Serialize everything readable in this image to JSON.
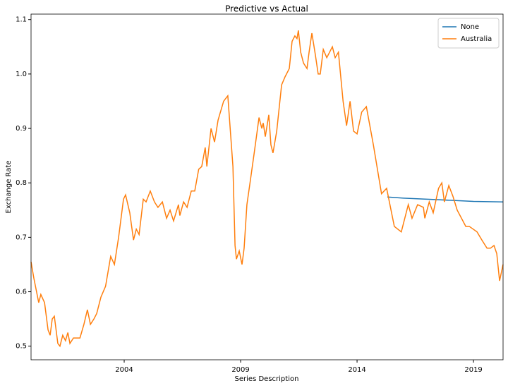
{
  "chart_data": {
    "type": "line",
    "title": "Predictive vs Actual",
    "xlabel": "Series Description",
    "ylabel": "Exchange Rate",
    "xlim": [
      2000.0,
      2020.27
    ],
    "xticks": [
      2004,
      2009,
      2014,
      2019
    ],
    "ylim": [
      0.475,
      1.11
    ],
    "yticks": [
      0.5,
      0.6,
      0.7,
      0.8,
      0.9,
      {
        "value": 1,
        "label": "1.0"
      },
      1.1
    ],
    "legend": "upper right",
    "series": [
      {
        "name": "None",
        "color": "#1f77b4",
        "x": [
          2015.3,
          2016.0,
          2017.0,
          2018.0,
          2019.0,
          2020.27
        ],
        "values": [
          0.774,
          0.772,
          0.77,
          0.768,
          0.766,
          0.765
        ]
      },
      {
        "name": "Australia",
        "color": "#ff7f0e",
        "x": [
          2000.0,
          2000.12,
          2000.33,
          2000.42,
          2000.58,
          2000.73,
          2000.82,
          2000.91,
          2001.0,
          2001.15,
          2001.24,
          2001.36,
          2001.48,
          2001.58,
          2001.67,
          2001.82,
          2002.0,
          2002.1,
          2002.27,
          2002.42,
          2002.55,
          2002.7,
          2002.82,
          2003.0,
          2003.2,
          2003.42,
          2003.58,
          2003.76,
          2003.97,
          2004.06,
          2004.24,
          2004.4,
          2004.52,
          2004.64,
          2004.82,
          2004.94,
          2005.12,
          2005.3,
          2005.45,
          2005.64,
          2005.82,
          2005.97,
          2006.12,
          2006.33,
          2006.39,
          2006.55,
          2006.7,
          2006.88,
          2007.03,
          2007.2,
          2007.33,
          2007.48,
          2007.55,
          2007.73,
          2007.88,
          2008.03,
          2008.27,
          2008.45,
          2008.67,
          2008.76,
          2008.82,
          2008.94,
          2009.06,
          2009.15,
          2009.27,
          2009.42,
          2009.6,
          2009.79,
          2009.91,
          2009.97,
          2010.06,
          2010.21,
          2010.3,
          2010.39,
          2010.55,
          2010.76,
          2010.91,
          2011.09,
          2011.21,
          2011.33,
          2011.42,
          2011.48,
          2011.58,
          2011.7,
          2011.85,
          2011.94,
          2012.06,
          2012.21,
          2012.33,
          2012.42,
          2012.55,
          2012.7,
          2012.94,
          2013.06,
          2013.2,
          2013.4,
          2013.55,
          2013.7,
          2013.85,
          2014.0,
          2014.2,
          2014.4,
          2014.7,
          2015.05,
          2015.27,
          2015.6,
          2015.9,
          2016.2,
          2016.36,
          2016.6,
          2016.85,
          2016.91,
          2017.1,
          2017.27,
          2017.5,
          2017.64,
          2017.75,
          2017.94,
          2018.12,
          2018.3,
          2018.67,
          2018.82,
          2019.15,
          2019.36,
          2019.58,
          2019.73,
          2019.88,
          2020.0,
          2020.12,
          2020.27
        ],
        "values": [
          0.655,
          0.625,
          0.58,
          0.595,
          0.58,
          0.53,
          0.52,
          0.55,
          0.555,
          0.505,
          0.5,
          0.52,
          0.51,
          0.525,
          0.505,
          0.515,
          0.515,
          0.515,
          0.54,
          0.567,
          0.54,
          0.55,
          0.56,
          0.59,
          0.61,
          0.665,
          0.65,
          0.7,
          0.77,
          0.778,
          0.745,
          0.695,
          0.715,
          0.705,
          0.77,
          0.765,
          0.785,
          0.765,
          0.755,
          0.765,
          0.735,
          0.75,
          0.73,
          0.76,
          0.74,
          0.765,
          0.755,
          0.785,
          0.785,
          0.825,
          0.83,
          0.865,
          0.83,
          0.9,
          0.875,
          0.915,
          0.95,
          0.96,
          0.83,
          0.685,
          0.66,
          0.675,
          0.65,
          0.68,
          0.76,
          0.805,
          0.86,
          0.92,
          0.9,
          0.91,
          0.885,
          0.925,
          0.87,
          0.855,
          0.895,
          0.98,
          0.995,
          1.01,
          1.06,
          1.07,
          1.065,
          1.08,
          1.04,
          1.02,
          1.01,
          1.04,
          1.075,
          1.035,
          1.0,
          1.0,
          1.045,
          1.03,
          1.05,
          1.03,
          1.04,
          0.95,
          0.905,
          0.95,
          0.895,
          0.89,
          0.93,
          0.94,
          0.87,
          0.78,
          0.79,
          0.72,
          0.71,
          0.76,
          0.735,
          0.76,
          0.755,
          0.735,
          0.765,
          0.745,
          0.79,
          0.8,
          0.765,
          0.795,
          0.775,
          0.75,
          0.72,
          0.72,
          0.71,
          0.695,
          0.68,
          0.68,
          0.685,
          0.67,
          0.62,
          0.65
        ]
      }
    ]
  }
}
